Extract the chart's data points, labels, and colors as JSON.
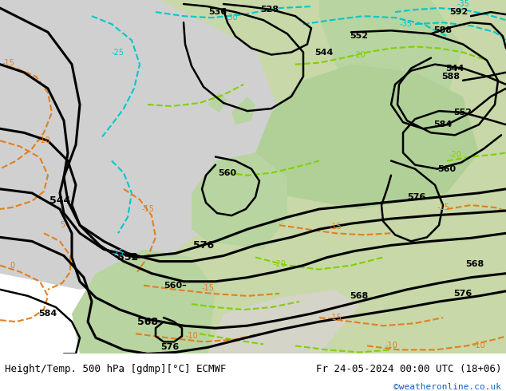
{
  "title_left": "Height/Temp. 500 hPa [gdmp][°C] ECMWF",
  "title_right": "Fr 24-05-2024 00:00 UTC (18+06)",
  "credit": "©weatheronline.co.uk",
  "fig_bg": "#ffffff",
  "map_gray": "#c8c8c8",
  "map_green": "#b8d8a0",
  "map_white": "#e8e8e8",
  "map_lt_green": "#d0e8b0",
  "fig_width": 6.34,
  "fig_height": 4.9,
  "dpi": 100
}
